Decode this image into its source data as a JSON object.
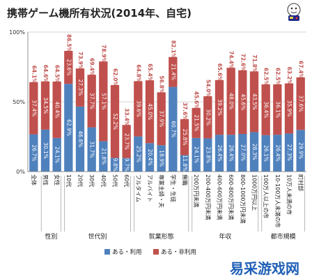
{
  "title": "携帯ゲーム機所有状況(2014年、自宅)",
  "watermark": "易采游戏网",
  "colors": {
    "used": "#4f81bd",
    "unused": "#c0504d",
    "used_label": "#ffffff",
    "unused_label": "#c0504d",
    "grid": "#c8c8c8"
  },
  "chart_data": {
    "type": "bar",
    "stacked": true,
    "categories": [
      "全体",
      "男性",
      "女性",
      "10代",
      "20代",
      "30代",
      "40代",
      "50代",
      "60代",
      "フルタイム",
      "アルバイト",
      "専業主婦・夫",
      "学生・生徒",
      "無職",
      "200万円未満",
      "200-400万円未満",
      "400-600万円未満",
      "600-800万円未満",
      "800-1000万円未満",
      "1000万円以上",
      "100万人以上の市",
      "10-100万人未満の市",
      "10万人未満の市",
      "町村部"
    ],
    "series": [
      {
        "name": "ある・利用",
        "values": [
          26.7,
          30.1,
          24.1,
          62.9,
          46.6,
          31.7,
          21.8,
          9.8,
          9.7,
          25.2,
          20.4,
          18.9,
          60.7,
          11.8,
          24.1,
          23.8,
          26.4,
          26.4,
          27.0,
          28.3,
          26.1,
          26.4,
          27.3,
          29.9
        ]
      },
      {
        "name": "ある・非利用",
        "values": [
          37.4,
          34.5,
          40.4,
          23.6,
          27.3,
          37.7,
          57.1,
          52.2,
          23.7,
          39.6,
          45.0,
          37.9,
          21.4,
          25.8,
          21.5,
          30.2,
          39.2,
          48.0,
          45.6,
          43.5,
          36.4,
          36.1,
          35.9,
          37.6
        ]
      }
    ],
    "totals": [
      64.1,
      64.6,
      64.5,
      86.5,
      73.9,
      69.4,
      78.9,
      62.0,
      33.4,
      64.8,
      65.4,
      56.8,
      82.1,
      37.6,
      45.6,
      54.0,
      65.6,
      74.4,
      72.6,
      71.8,
      62.5,
      62.5,
      63.2,
      67.4
    ],
    "groups": [
      {
        "name": "性別",
        "start": 1,
        "end": 2
      },
      {
        "name": "世代別",
        "start": 3,
        "end": 8
      },
      {
        "name": "就業形態",
        "start": 9,
        "end": 13
      },
      {
        "name": "年収",
        "start": 14,
        "end": 19
      },
      {
        "name": "都市規模",
        "start": 20,
        "end": 23
      }
    ],
    "yticks": [
      "0%",
      "50%",
      "100%"
    ],
    "ylim": [
      0,
      100
    ],
    "grid": true,
    "legend_position": "bottom"
  }
}
